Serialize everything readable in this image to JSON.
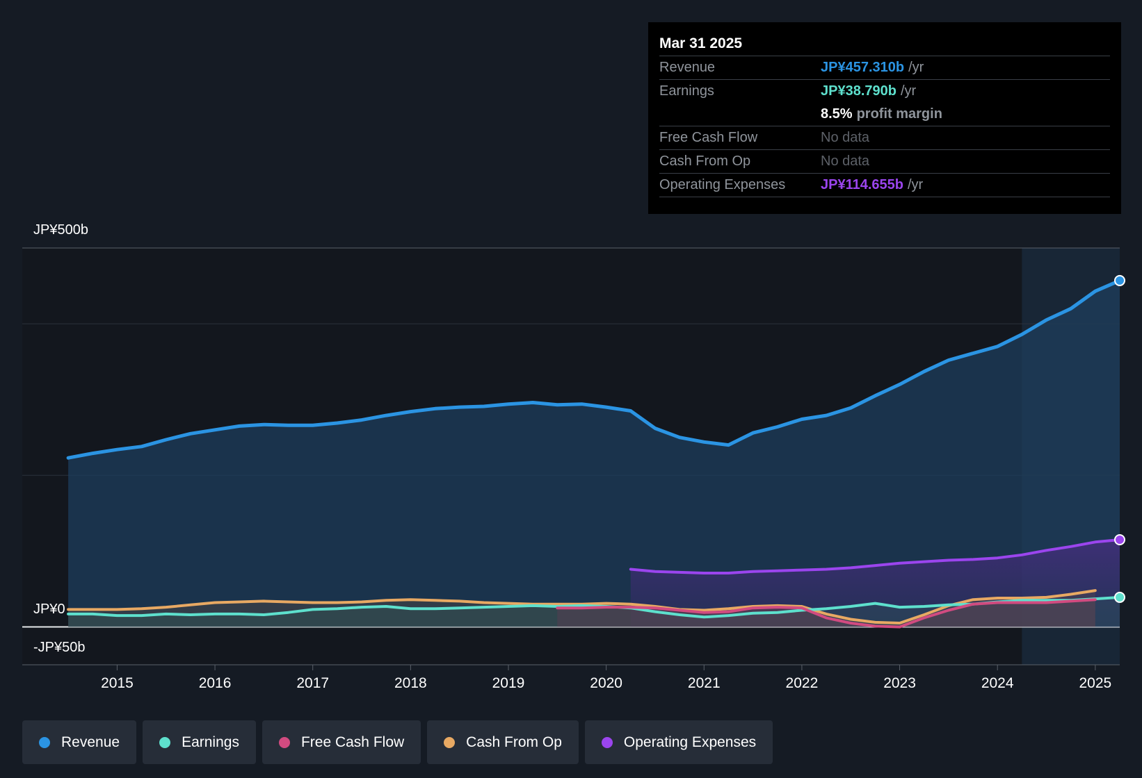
{
  "tooltip": {
    "date": "Mar 31 2025",
    "revenue_label": "Revenue",
    "revenue_value": "JP¥457.310b",
    "earnings_label": "Earnings",
    "earnings_value": "JP¥38.790b",
    "margin_value": "8.5%",
    "margin_text": "profit margin",
    "fcf_label": "Free Cash Flow",
    "fcf_value": "No data",
    "cfo_label": "Cash From Op",
    "cfo_value": "No data",
    "opex_label": "Operating Expenses",
    "opex_value": "JP¥114.655b",
    "unit": "/yr"
  },
  "colors": {
    "revenue": "#2b94e3",
    "earnings": "#5ee0cd",
    "fcf": "#d14b80",
    "cfo": "#e8a963",
    "opex": "#9b45ee"
  },
  "legend": [
    {
      "label": "Revenue",
      "color": "#2b94e3"
    },
    {
      "label": "Earnings",
      "color": "#5ee0cd"
    },
    {
      "label": "Free Cash Flow",
      "color": "#d14b80"
    },
    {
      "label": "Cash From Op",
      "color": "#e8a963"
    },
    {
      "label": "Operating Expenses",
      "color": "#9b45ee"
    }
  ],
  "chart_data": {
    "type": "line",
    "title": "",
    "xlabel": "",
    "ylabel": "",
    "ylim": [
      -50,
      500
    ],
    "xlim": [
      2014.03,
      2025.25
    ],
    "y_tick_labels": [
      "JP¥500b",
      "JP¥0",
      "-JP¥50b"
    ],
    "x_ticks": [
      2015,
      2016,
      2017,
      2018,
      2019,
      2020,
      2021,
      2022,
      2023,
      2024,
      2025
    ],
    "x_tick_labels": [
      "2015",
      "2016",
      "2017",
      "2018",
      "2019",
      "2020",
      "2021",
      "2022",
      "2023",
      "2024",
      "2025"
    ],
    "forecast_start": 2024.25,
    "series": [
      {
        "name": "Revenue",
        "key": "revenue",
        "x": [
          2014.5,
          2014.75,
          2015.0,
          2015.25,
          2015.5,
          2015.75,
          2016.0,
          2016.25,
          2016.5,
          2016.75,
          2017.0,
          2017.25,
          2017.5,
          2017.75,
          2018.0,
          2018.25,
          2018.5,
          2018.75,
          2019.0,
          2019.25,
          2019.5,
          2019.75,
          2020.0,
          2020.25,
          2020.5,
          2020.75,
          2021.0,
          2021.25,
          2021.5,
          2021.75,
          2022.0,
          2022.25,
          2022.5,
          2022.75,
          2023.0,
          2023.25,
          2023.5,
          2023.75,
          2024.0,
          2024.25,
          2024.5,
          2024.75,
          2025.0,
          2025.25
        ],
        "values": [
          223,
          229,
          234,
          238,
          247,
          255,
          260,
          265,
          267,
          266,
          266,
          269,
          273,
          279,
          284,
          288,
          290,
          291,
          294,
          296,
          293,
          294,
          290,
          285,
          262,
          250,
          244,
          240,
          256,
          264,
          274,
          279,
          289,
          305,
          320,
          337,
          352,
          361,
          370,
          386,
          405,
          420,
          443,
          457
        ]
      },
      {
        "name": "Earnings",
        "key": "earnings",
        "x": [
          2014.5,
          2014.75,
          2015.0,
          2015.25,
          2015.5,
          2015.75,
          2016.0,
          2016.25,
          2016.5,
          2016.75,
          2017.0,
          2017.25,
          2017.5,
          2017.75,
          2018.0,
          2018.25,
          2018.5,
          2018.75,
          2019.0,
          2019.25,
          2019.5,
          2019.75,
          2020.0,
          2020.25,
          2020.5,
          2020.75,
          2021.0,
          2021.25,
          2021.5,
          2021.75,
          2022.0,
          2022.25,
          2022.5,
          2022.75,
          2023.0,
          2023.25,
          2023.5,
          2023.75,
          2024.0,
          2024.25,
          2024.5,
          2024.75,
          2025.0,
          2025.25
        ],
        "values": [
          17,
          17,
          15,
          15,
          17,
          16,
          17,
          17,
          16,
          19,
          23,
          24,
          26,
          27,
          24,
          24,
          25,
          26,
          27,
          28,
          27,
          28,
          27,
          25,
          20,
          16,
          13,
          15,
          18,
          19,
          22,
          24,
          27,
          31,
          26,
          27,
          29,
          30,
          33,
          35,
          35,
          35,
          37,
          39
        ]
      },
      {
        "name": "Free Cash Flow",
        "key": "fcf",
        "x": [
          2019.5,
          2019.75,
          2020.0,
          2020.25,
          2020.5,
          2020.75,
          2021.0,
          2021.25,
          2021.5,
          2021.75,
          2022.0,
          2022.25,
          2022.5,
          2022.75,
          2023.0,
          2023.25,
          2023.5,
          2023.75,
          2024.0,
          2024.25,
          2024.5,
          2024.75,
          2025.0
        ],
        "values": [
          25,
          25,
          26,
          26,
          25,
          22,
          19,
          20,
          25,
          26,
          25,
          12,
          5,
          1,
          0,
          12,
          22,
          30,
          32,
          32,
          32,
          34,
          36
        ]
      },
      {
        "name": "Cash From Op",
        "key": "cfo",
        "x": [
          2014.5,
          2014.75,
          2015.0,
          2015.25,
          2015.5,
          2015.75,
          2016.0,
          2016.25,
          2016.5,
          2016.75,
          2017.0,
          2017.25,
          2017.5,
          2017.75,
          2018.0,
          2018.25,
          2018.5,
          2018.75,
          2019.0,
          2019.25,
          2019.5,
          2019.75,
          2020.0,
          2020.25,
          2020.5,
          2020.75,
          2021.0,
          2021.25,
          2021.5,
          2021.75,
          2022.0,
          2022.25,
          2022.5,
          2022.75,
          2023.0,
          2023.25,
          2023.5,
          2023.75,
          2024.0,
          2024.25,
          2024.5,
          2024.75,
          2025.0
        ],
        "values": [
          23,
          23,
          23,
          24,
          26,
          29,
          32,
          33,
          34,
          33,
          32,
          32,
          33,
          35,
          36,
          35,
          34,
          32,
          31,
          30,
          30,
          30,
          31,
          30,
          27,
          23,
          22,
          24,
          27,
          28,
          27,
          17,
          10,
          6,
          5,
          16,
          28,
          36,
          38,
          38,
          39,
          43,
          48
        ]
      },
      {
        "name": "Operating Expenses",
        "key": "opex",
        "x": [
          2020.25,
          2020.5,
          2020.75,
          2021.0,
          2021.25,
          2021.5,
          2021.75,
          2022.0,
          2022.25,
          2022.5,
          2022.75,
          2023.0,
          2023.25,
          2023.5,
          2023.75,
          2024.0,
          2024.25,
          2024.5,
          2024.75,
          2025.0,
          2025.25
        ],
        "values": [
          76,
          73,
          72,
          71,
          71,
          73,
          74,
          75,
          76,
          78,
          81,
          84,
          86,
          88,
          89,
          91,
          95,
          101,
          106,
          112,
          115
        ]
      }
    ]
  }
}
